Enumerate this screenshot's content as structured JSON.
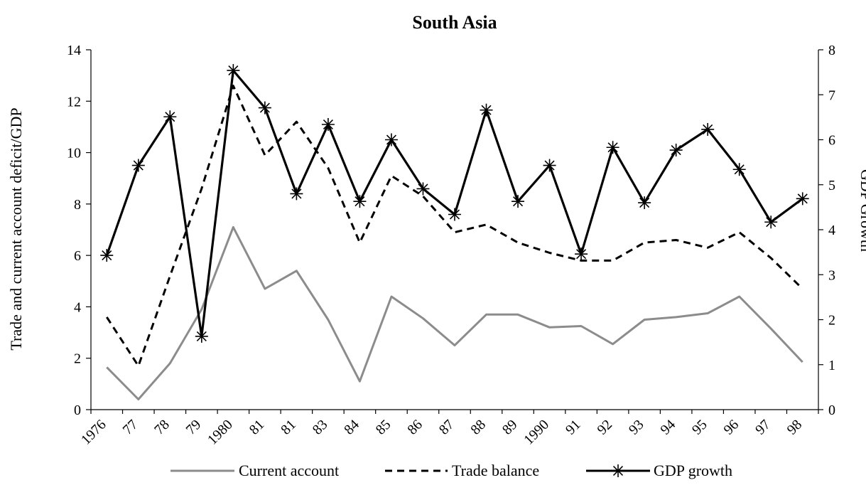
{
  "chart_data": {
    "type": "line",
    "title": "South Asia",
    "ylabel": "Trade and current account deficit/GDP",
    "y2label": "GDP Growth",
    "categories": [
      "1976",
      "77",
      "78",
      "79",
      "1980",
      "81",
      "81",
      "83",
      "84",
      "85",
      "86",
      "87",
      "88",
      "89",
      "1990",
      "91",
      "92",
      "93",
      "94",
      "95",
      "96",
      "97",
      "98"
    ],
    "ylim": [
      0,
      14
    ],
    "yticks": [
      0,
      2,
      4,
      6,
      8,
      10,
      12,
      14
    ],
    "y2lim": [
      0,
      8
    ],
    "y2ticks": [
      0,
      1,
      2,
      3,
      4,
      5,
      6,
      7,
      8
    ],
    "grid": false,
    "legend_position": "bottom",
    "series": [
      {
        "name": "Current account",
        "axis": "left",
        "style": "solid",
        "color": "#8c8c8c",
        "values": [
          1.65,
          0.4,
          1.8,
          3.9,
          7.1,
          4.7,
          5.4,
          3.5,
          1.1,
          4.4,
          3.55,
          2.5,
          3.7,
          3.7,
          3.2,
          3.25,
          2.55,
          3.5,
          3.6,
          3.75,
          4.4,
          3.15,
          1.85
        ]
      },
      {
        "name": "Trade balance",
        "axis": "left",
        "style": "dashed",
        "color": "#000000",
        "values": [
          3.6,
          1.7,
          5.2,
          8.6,
          12.6,
          9.9,
          11.2,
          9.4,
          6.5,
          9.1,
          8.3,
          6.9,
          7.2,
          6.5,
          6.1,
          5.8,
          5.8,
          6.5,
          6.6,
          6.3,
          6.9,
          5.9,
          4.7
        ]
      },
      {
        "name": "GDP growth",
        "axis": "right",
        "style": "solid-star",
        "color": "#000000",
        "values": [
          3.43,
          5.43,
          6.51,
          1.63,
          7.54,
          6.71,
          4.8,
          6.34,
          4.63,
          6.0,
          4.91,
          4.34,
          6.66,
          4.63,
          5.43,
          3.46,
          5.83,
          4.6,
          5.77,
          6.23,
          5.34,
          4.17,
          4.69
        ]
      }
    ]
  }
}
